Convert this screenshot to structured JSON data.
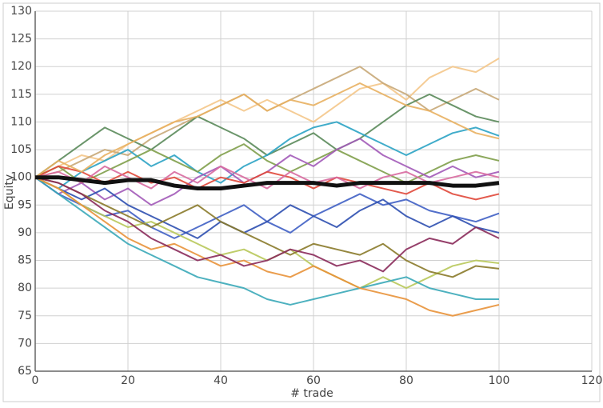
{
  "chart_data": {
    "type": "line",
    "x_label": "# trade",
    "y_label": "Equity",
    "xlim": [
      0,
      120
    ],
    "xticks": [
      0,
      20,
      40,
      60,
      80,
      100,
      120
    ],
    "ylim": [
      65,
      130
    ],
    "yticks": [
      65,
      70,
      75,
      80,
      85,
      90,
      95,
      100,
      105,
      110,
      115,
      120,
      125,
      130
    ],
    "grid": true,
    "x": [
      0,
      5,
      10,
      15,
      20,
      25,
      30,
      35,
      40,
      45,
      50,
      55,
      60,
      65,
      70,
      75,
      80,
      85,
      90,
      95,
      100
    ],
    "series": [
      {
        "color": "#f4c68a",
        "values": [
          100,
          102,
          104,
          103,
          106,
          108,
          110,
          112,
          114,
          112,
          114,
          112,
          110,
          113,
          116,
          117,
          114,
          118,
          120,
          119,
          121.5
        ]
      },
      {
        "color": "#c8a878",
        "values": [
          100,
          101,
          103,
          105,
          104,
          107,
          109,
          111,
          113,
          115,
          112,
          114,
          116,
          118,
          120,
          117,
          115,
          112,
          114,
          116,
          114
        ]
      },
      {
        "color": "#5a8a5a",
        "values": [
          100,
          103,
          106,
          109,
          107,
          105,
          108,
          111,
          109,
          107,
          104,
          106,
          108,
          105,
          107,
          110,
          113,
          115,
          113,
          111,
          110
        ]
      },
      {
        "color": "#2ba3c4",
        "values": [
          100,
          98,
          101,
          103,
          105,
          102,
          104,
          101,
          99,
          102,
          104,
          107,
          109,
          110,
          108,
          106,
          104,
          106,
          108,
          109,
          107.5
        ]
      },
      {
        "color": "#7f9f4a",
        "values": [
          100,
          102,
          99,
          101,
          103,
          105,
          103,
          101,
          104,
          106,
          103,
          101,
          103,
          105,
          103,
          101,
          99,
          101,
          103,
          104,
          103
        ]
      },
      {
        "color": "#a25ab8",
        "values": [
          100,
          97,
          99,
          96,
          98,
          95,
          97,
          100,
          102,
          99,
          101,
          104,
          102,
          105,
          107,
          104,
          102,
          100,
          102,
          100,
          101
        ]
      },
      {
        "color": "#3f5fc4",
        "values": [
          100,
          97,
          95,
          93,
          94,
          91,
          89,
          91,
          93,
          95,
          92,
          90,
          93,
          95,
          97,
          95,
          96,
          94,
          93,
          92,
          93.5
        ]
      },
      {
        "color": "#2e4fb0",
        "values": [
          100,
          98,
          96,
          98,
          95,
          93,
          91,
          89,
          92,
          90,
          92,
          95,
          93,
          91,
          94,
          96,
          93,
          91,
          93,
          91,
          90
        ]
      },
      {
        "color": "#b8c85a",
        "values": [
          100,
          98,
          95,
          93,
          91,
          92,
          90,
          88,
          86,
          87,
          85,
          87,
          84,
          82,
          80,
          82,
          80,
          82,
          84,
          85,
          84.5
        ]
      },
      {
        "color": "#8a7a2a",
        "values": [
          100,
          99,
          97,
          95,
          93,
          91,
          93,
          95,
          92,
          90,
          88,
          86,
          88,
          87,
          86,
          88,
          85,
          83,
          82,
          84,
          83.5
        ]
      },
      {
        "color": "#3aa8b8",
        "values": [
          100,
          97,
          94,
          91,
          88,
          86,
          84,
          82,
          81,
          80,
          78,
          77,
          78,
          79,
          80,
          81,
          82,
          80,
          79,
          78,
          78
        ]
      },
      {
        "color": "#e8923a",
        "values": [
          100,
          98,
          95,
          92,
          89,
          87,
          88,
          86,
          84,
          85,
          83,
          82,
          84,
          82,
          80,
          79,
          78,
          76,
          75,
          76,
          77
        ]
      },
      {
        "color": "#e0483a",
        "values": [
          100,
          102,
          101,
          99,
          101,
          99,
          100,
          98,
          100,
          99,
          101,
          100,
          98,
          100,
          99,
          98,
          97,
          99,
          97,
          96,
          97
        ]
      },
      {
        "color": "#d86aa0",
        "values": [
          100,
          101,
          99,
          102,
          100,
          98,
          101,
          99,
          102,
          100,
          98,
          101,
          99,
          100,
          98,
          100,
          101,
          99,
          100,
          101,
          100
        ]
      },
      {
        "color": "#8a2a5a",
        "values": [
          100,
          99,
          97,
          94,
          92,
          89,
          87,
          85,
          86,
          84,
          85,
          87,
          86,
          84,
          85,
          83,
          87,
          89,
          88,
          91,
          89
        ]
      },
      {
        "color": "#e8b060",
        "values": [
          100,
          103,
          101,
          104,
          106,
          108,
          110,
          111,
          113,
          115,
          112,
          114,
          113,
          115,
          117,
          115,
          113,
          112,
          110,
          108,
          107
        ]
      },
      {
        "color": "#111111",
        "values": [
          100,
          100,
          99.5,
          99,
          99.5,
          99.5,
          98.5,
          98,
          98,
          98.5,
          99,
          99,
          99,
          98.5,
          99,
          99,
          99,
          99,
          98.5,
          98.5,
          99
        ]
      }
    ]
  }
}
